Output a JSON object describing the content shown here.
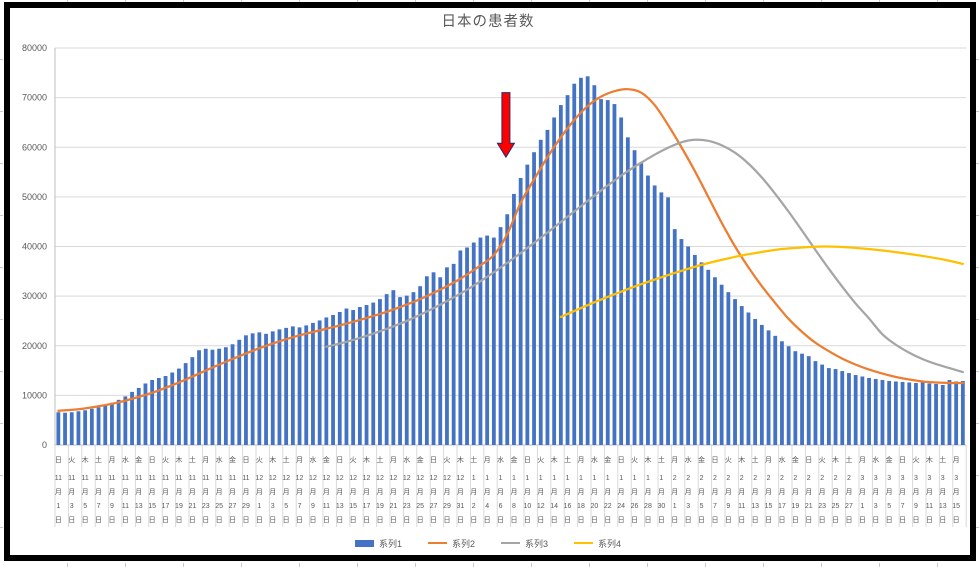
{
  "window": {
    "background": "#FFFFFF",
    "chart_border_color": "#000000"
  },
  "chart_data": {
    "type": "combo",
    "title": "日本の患者数",
    "grid_color": "#D9D9D9",
    "axis_line_color": "#BFBFBF",
    "axis_text_color": "#595959",
    "y_axis": {
      "min": 0,
      "max": 80000,
      "tick_interval": 10000,
      "tick_labels": [
        "0",
        "10000",
        "20000",
        "30000",
        "40000",
        "50000",
        "60000",
        "70000",
        "80000"
      ]
    },
    "x_axis": {
      "note": "labels are weekday|month|day rendered stacked vertically, one label per 2 daily bars",
      "labels": [
        "日|11|1",
        "火|11|3",
        "木|11|5",
        "土|11|7",
        "月|11|9",
        "水|11|11",
        "金|11|13",
        "日|11|15",
        "火|11|17",
        "木|11|19",
        "土|11|21",
        "月|11|23",
        "水|11|25",
        "金|11|27",
        "日|11|29",
        "火|12|1",
        "木|12|3",
        "土|12|5",
        "月|12|7",
        "水|12|9",
        "金|12|11",
        "日|12|13",
        "火|12|15",
        "木|12|17",
        "土|12|19",
        "月|12|21",
        "水|12|23",
        "金|12|25",
        "日|12|27",
        "火|12|29",
        "木|12|31",
        "土|1|2",
        "月|1|4",
        "水|1|6",
        "金|1|8",
        "日|1|10",
        "火|1|12",
        "木|1|14",
        "土|1|16",
        "月|1|18",
        "水|1|20",
        "金|1|22",
        "日|1|24",
        "火|1|26",
        "木|1|28",
        "土|1|30",
        "月|2|1",
        "水|2|3",
        "金|2|5",
        "日|2|7",
        "火|2|9",
        "木|2|11",
        "土|2|13",
        "月|2|15",
        "水|2|17",
        "金|2|19",
        "日|2|21",
        "火|2|23",
        "木|2|25",
        "土|2|27",
        "月|3|1",
        "水|3|3",
        "金|3|5",
        "日|3|7",
        "火|3|9",
        "木|3|11",
        "土|3|13",
        "月|3|15"
      ],
      "month_char": "月",
      "day_char": "日"
    },
    "series": [
      {
        "name": "系列1",
        "type": "bar",
        "color": "#4472C4",
        "values": [
          6600,
          6500,
          6600,
          6800,
          7000,
          7300,
          7600,
          8000,
          8500,
          9100,
          9800,
          10700,
          11500,
          12400,
          13100,
          13500,
          13900,
          14600,
          15400,
          16500,
          17700,
          19100,
          19400,
          19200,
          19400,
          19700,
          20300,
          21200,
          22100,
          22500,
          22700,
          22400,
          22900,
          23300,
          23600,
          23900,
          23700,
          24100,
          24600,
          25100,
          25700,
          26200,
          26800,
          27500,
          27200,
          27800,
          28200,
          28700,
          29400,
          30400,
          31200,
          29800,
          30100,
          30800,
          32000,
          34000,
          34800,
          33800,
          35800,
          36500,
          39200,
          39800,
          40800,
          41800,
          42200,
          41800,
          43900,
          46500,
          50600,
          53800,
          56500,
          59000,
          61500,
          63500,
          66000,
          68500,
          70500,
          72800,
          74000,
          74300,
          72500,
          69700,
          69500,
          68700,
          66000,
          62000,
          59400,
          56800,
          54300,
          52300,
          50900,
          49900,
          43500,
          41500,
          40000,
          38300,
          36800,
          35300,
          33800,
          32300,
          30800,
          29400,
          28000,
          26700,
          25400,
          24200,
          23100,
          22000,
          20900,
          19900,
          18900,
          18400,
          17900,
          16900,
          16200,
          15500,
          15300,
          14900,
          14500,
          14100,
          13800,
          13500,
          13300,
          13100,
          12900,
          12800,
          12700,
          12600,
          12500,
          12600,
          12400,
          12300,
          12100,
          13100,
          12800,
          12900
        ]
      },
      {
        "name": "系列2",
        "type": "line",
        "color": "#ED7D31",
        "points": [
          [
            0,
            6900
          ],
          [
            3,
            7200
          ],
          [
            6,
            7800
          ],
          [
            9,
            8600
          ],
          [
            12,
            9700
          ],
          [
            15,
            11000
          ],
          [
            18,
            12600
          ],
          [
            21,
            14400
          ],
          [
            24,
            16200
          ],
          [
            27,
            17900
          ],
          [
            30,
            19500
          ],
          [
            33,
            20900
          ],
          [
            36,
            22100
          ],
          [
            39,
            23100
          ],
          [
            42,
            24100
          ],
          [
            45,
            25200
          ],
          [
            48,
            26400
          ],
          [
            51,
            27800
          ],
          [
            54,
            29400
          ],
          [
            57,
            31300
          ],
          [
            60,
            33500
          ],
          [
            63,
            36200
          ],
          [
            65,
            38300
          ],
          [
            67,
            42500
          ],
          [
            69,
            48800
          ],
          [
            71,
            53500
          ],
          [
            73,
            58000
          ],
          [
            75,
            62000
          ],
          [
            77,
            65500
          ],
          [
            79,
            68300
          ],
          [
            81,
            70200
          ],
          [
            83,
            71300
          ],
          [
            85,
            71700
          ],
          [
            87,
            71000
          ],
          [
            89,
            68500
          ],
          [
            91,
            64500
          ],
          [
            93,
            60000
          ],
          [
            95,
            55200
          ],
          [
            97,
            50000
          ],
          [
            99,
            44800
          ],
          [
            101,
            40000
          ],
          [
            103,
            35800
          ],
          [
            105,
            32000
          ],
          [
            107,
            28600
          ],
          [
            109,
            25400
          ],
          [
            111,
            22800
          ],
          [
            113,
            20600
          ],
          [
            115,
            18900
          ],
          [
            117,
            17400
          ],
          [
            119,
            16200
          ],
          [
            121,
            15200
          ],
          [
            123,
            14400
          ],
          [
            125,
            13700
          ],
          [
            127,
            13200
          ],
          [
            129,
            12800
          ],
          [
            131,
            12600
          ],
          [
            133,
            12500
          ],
          [
            135,
            12500
          ]
        ]
      },
      {
        "name": "系列3",
        "type": "line",
        "color": "#A5A5A5",
        "points": [
          [
            40,
            19800
          ],
          [
            43,
            20800
          ],
          [
            46,
            22000
          ],
          [
            49,
            23400
          ],
          [
            52,
            25000
          ],
          [
            55,
            26900
          ],
          [
            58,
            29000
          ],
          [
            61,
            31300
          ],
          [
            64,
            33900
          ],
          [
            67,
            36700
          ],
          [
            70,
            39700
          ],
          [
            73,
            42800
          ],
          [
            76,
            46000
          ],
          [
            79,
            49200
          ],
          [
            81,
            51300
          ],
          [
            83,
            53300
          ],
          [
            85,
            55200
          ],
          [
            87,
            56900
          ],
          [
            89,
            58500
          ],
          [
            91,
            59900
          ],
          [
            93,
            61000
          ],
          [
            95,
            61500
          ],
          [
            97,
            61300
          ],
          [
            99,
            60400
          ],
          [
            101,
            58900
          ],
          [
            103,
            56700
          ],
          [
            105,
            53900
          ],
          [
            107,
            50600
          ],
          [
            109,
            47000
          ],
          [
            111,
            43200
          ],
          [
            113,
            39300
          ],
          [
            115,
            35500
          ],
          [
            117,
            31900
          ],
          [
            119,
            28500
          ],
          [
            121,
            25500
          ],
          [
            123,
            22300
          ],
          [
            125,
            20200
          ],
          [
            127,
            18600
          ],
          [
            129,
            17300
          ],
          [
            131,
            16300
          ],
          [
            133,
            15500
          ],
          [
            135,
            14700
          ]
        ]
      },
      {
        "name": "系列4",
        "type": "line",
        "color": "#FFC000",
        "points": [
          [
            75,
            25800
          ],
          [
            78,
            27600
          ],
          [
            81,
            29300
          ],
          [
            84,
            30900
          ],
          [
            87,
            32400
          ],
          [
            90,
            33800
          ],
          [
            93,
            35100
          ],
          [
            96,
            36300
          ],
          [
            99,
            37300
          ],
          [
            102,
            38200
          ],
          [
            105,
            38900
          ],
          [
            108,
            39500
          ],
          [
            111,
            39800
          ],
          [
            114,
            40000
          ],
          [
            117,
            39900
          ],
          [
            120,
            39600
          ],
          [
            123,
            39200
          ],
          [
            126,
            38700
          ],
          [
            129,
            38100
          ],
          [
            132,
            37400
          ],
          [
            135,
            36500
          ]
        ]
      }
    ],
    "annotation": {
      "shape": "down-block-arrow",
      "fill": "#FF0000",
      "outline": "#28286E",
      "day_index": 66.8,
      "top_value": 71000,
      "shoulder_value": 60800,
      "tip_value": 58000
    },
    "legend": {
      "position": "bottom",
      "items": [
        "系列1",
        "系列2",
        "系列3",
        "系列4"
      ]
    }
  }
}
